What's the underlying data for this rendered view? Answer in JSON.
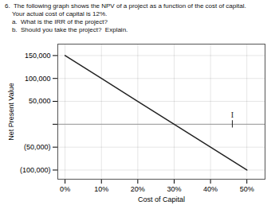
{
  "chart_data": {
    "type": "line",
    "title": "6.  The following graph shows the NPV of a project as a function of the cost of capital.",
    "subtitle": [
      "    Your actual cost of capital is 12%.",
      "    a.  What is the IRR of the project?",
      "    b.  Should you take the project?  Explain."
    ],
    "x_label": "Cost of Capital",
    "y_label": "Net Present Value",
    "x": [
      0.0,
      0.1,
      0.2,
      0.3,
      0.4,
      0.5
    ],
    "values": [
      150000,
      100000,
      50000,
      0,
      -50000,
      -100000
    ],
    "color": "#222222",
    "xlim": [
      -0.02,
      0.55
    ],
    "xticks": [
      {
        "value": 0,
        "label": "0%"
      },
      {
        "value": 0.1,
        "label": "10%"
      },
      {
        "value": 0.2,
        "label": "20%"
      },
      {
        "value": 0.3,
        "label": "30%"
      },
      {
        "value": 0.4,
        "label": "40%"
      },
      {
        "value": 0.5,
        "label": "50%"
      }
    ],
    "ylim": [
      -120000,
      175000
    ],
    "yticks": [
      {
        "value": -100000,
        "label": "(100,000)"
      },
      {
        "value": -50000,
        "label": "(50,000)"
      },
      {
        "value": 0,
        "label": null
      },
      {
        "value": 50000,
        "label": "50,000"
      },
      {
        "value": 100000,
        "label": "100,000"
      },
      {
        "value": 150000,
        "label": "150,000"
      }
    ],
    "annotations": [
      {
        "text": "I",
        "x": 0.46,
        "y": 15000,
        "line_y": [
          -8000,
          8000
        ]
      }
    ],
    "grid": true
  }
}
